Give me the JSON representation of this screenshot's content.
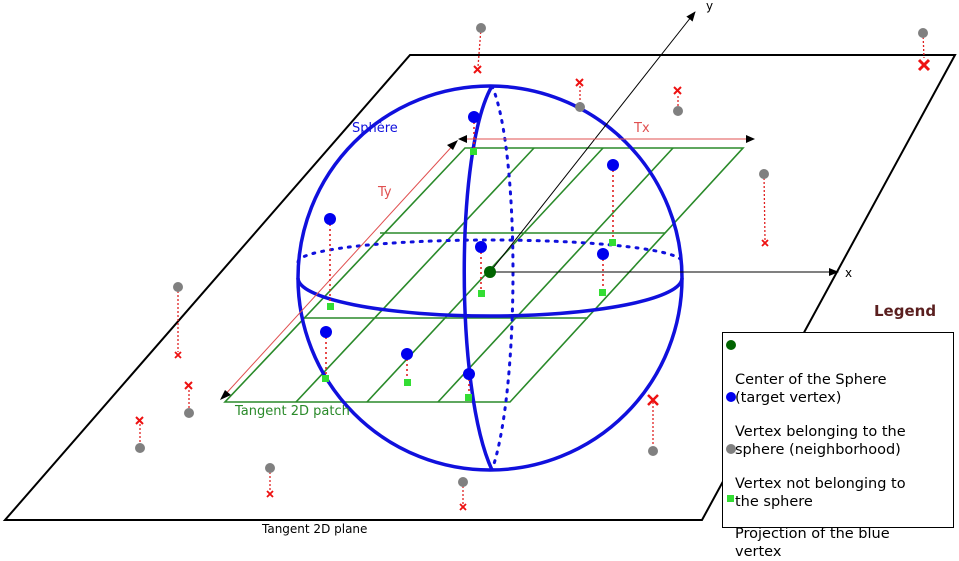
{
  "labels": {
    "sphere": "Sphère",
    "tx": "Tx",
    "ty": "Ty",
    "axis_x": "x",
    "axis_y": "y",
    "patch": "Tangent 2D patch",
    "plane": "Tangent 2D plane"
  },
  "legend": {
    "title": "Legend",
    "items": [
      {
        "text": "Center of the Sphere\n(target vertex)",
        "color": "#006400",
        "marker": "circle"
      },
      {
        "text": "Vertex belonging to the\nsphere (neighborhood)",
        "color": "#0000ee",
        "marker": "circle"
      },
      {
        "text": "Vertex not belonging to\n the sphere",
        "color": "#808080",
        "marker": "circle"
      },
      {
        "text": "Projection of the blue\n vertex",
        "color": "#33dd33",
        "marker": "square"
      }
    ]
  },
  "colors": {
    "sphere": "#1010dd",
    "patch": "#2a8a2a",
    "annotation": "#e05050",
    "plane": "#000000",
    "outside_x": "#ee1111"
  }
}
